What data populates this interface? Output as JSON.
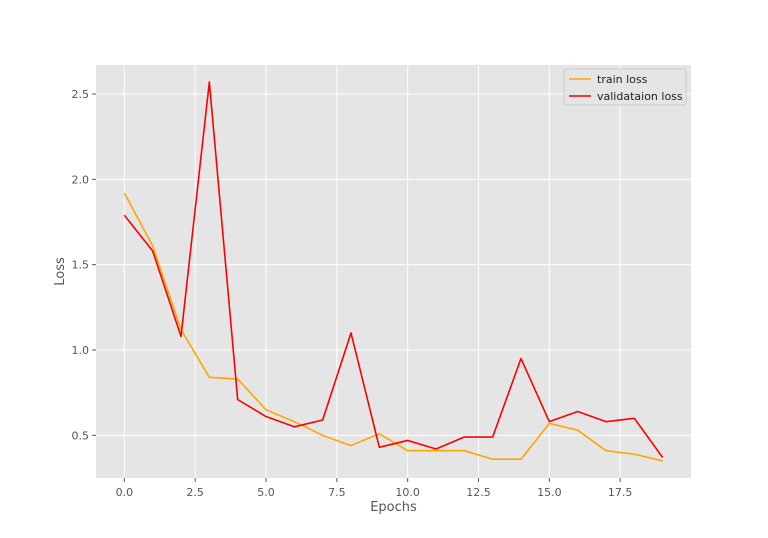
{
  "chart_data": {
    "type": "line",
    "title": "",
    "xlabel": "Epochs",
    "ylabel": "Loss",
    "xlim": [
      -1,
      20
    ],
    "ylim": [
      0.25,
      2.67
    ],
    "grid": true,
    "legend_position": "top-right",
    "xticks": [
      0,
      2.5,
      5,
      7.5,
      10,
      12.5,
      15,
      17.5
    ],
    "xtick_labels": [
      "0.0",
      "2.5",
      "5.0",
      "7.5",
      "10.0",
      "12.5",
      "15.0",
      "17.5"
    ],
    "yticks": [
      0.5,
      1.0,
      1.5,
      2.0,
      2.5
    ],
    "ytick_labels": [
      "0.5",
      "1.0",
      "1.5",
      "2.0",
      "2.5"
    ],
    "x": [
      0,
      1,
      2,
      3,
      4,
      5,
      6,
      7,
      8,
      9,
      10,
      11,
      12,
      13,
      14,
      15,
      16,
      17,
      18,
      19
    ],
    "series": [
      {
        "name": "train loss",
        "color": "#FFA500",
        "values": [
          1.92,
          1.61,
          1.12,
          0.84,
          0.83,
          0.65,
          0.58,
          0.5,
          0.44,
          0.51,
          0.41,
          0.41,
          0.41,
          0.36,
          0.36,
          0.57,
          0.53,
          0.41,
          0.39,
          0.35
        ]
      },
      {
        "name": "validataion loss",
        "color": "#FF0000",
        "values": [
          1.79,
          1.58,
          1.08,
          2.57,
          0.71,
          0.61,
          0.55,
          0.59,
          1.1,
          0.43,
          0.47,
          0.42,
          0.49,
          0.49,
          0.95,
          0.58,
          0.64,
          0.58,
          0.6,
          0.37
        ]
      }
    ]
  }
}
